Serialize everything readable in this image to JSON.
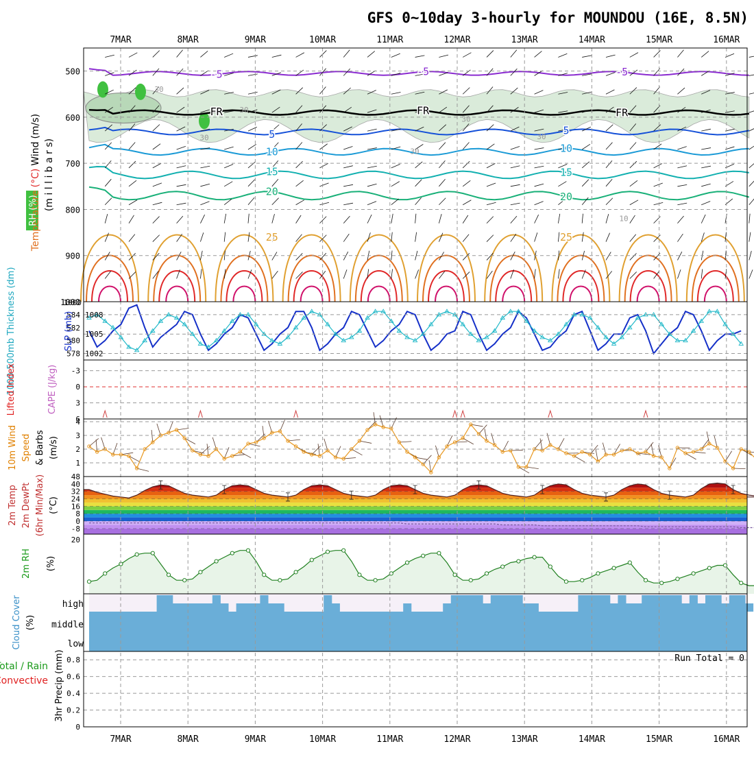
{
  "title": "GFS 0~10day 3-hourly for MOUNDOU (16E, 8.5N)",
  "dates": [
    "7MAR",
    "8MAR",
    "9MAR",
    "10MAR",
    "11MAR",
    "12MAR",
    "13MAR",
    "14MAR",
    "15MAR",
    "16MAR"
  ],
  "colors": {
    "purple": "#8a2bd0",
    "black": "#000000",
    "blue": "#1450d8",
    "lightblue": "#1a9ad6",
    "teal": "#12b0b0",
    "green": "#18b078",
    "orange": "#e0a030",
    "darkorange": "#e07020",
    "red": "#e02828",
    "magenta": "#d0106a",
    "rhfill": "#d4e8d4",
    "rhfill2": "#b8d8b8",
    "rhgreen": "#40c040",
    "slp": "#1530c8",
    "thick": "#20b8c8",
    "wind": "#e89820",
    "rhline": "#208020",
    "cloud": "#6aaed8",
    "cloudbg": "#f6f0f8",
    "lifted": "#e02020",
    "cape": "#c060c0",
    "precip_total": "#20a020"
  },
  "chart_data": [
    {
      "type": "contour",
      "panel": "upper-air",
      "ylabel_parts": [
        "Wind",
        "(m/s)",
        "Temperature",
        "(°C)",
        "RH",
        "(%)"
      ],
      "yunit_label": "(m i l l i b a r s)",
      "y_ticks": [
        500,
        600,
        700,
        800,
        900,
        1000
      ],
      "ylim": [
        1000,
        450
      ],
      "isotherms": [
        {
          "label": "-5",
          "pressure": 505,
          "color_key": "purple",
          "labels": [
            "-5",
            "-5",
            "-5"
          ]
        },
        {
          "label": "FR",
          "pressure": 590,
          "color_key": "black",
          "labels": [
            "FR",
            "FR",
            "FR"
          ]
        },
        {
          "label": "5",
          "pressure": 632,
          "color_key": "blue",
          "labels": [
            "5",
            "5"
          ]
        },
        {
          "label": "10",
          "pressure": 675,
          "color_key": "lightblue",
          "labels": [
            "10",
            "10"
          ]
        },
        {
          "label": "15",
          "pressure": 725,
          "color_key": "teal",
          "labels": [
            "15",
            "15"
          ]
        },
        {
          "label": "20",
          "pressure": 770,
          "color_key": "green",
          "labels": [
            "20",
            "20"
          ]
        },
        {
          "label": "25",
          "pressure": 860,
          "color_key": "orange",
          "labels": [
            "25",
            "25"
          ]
        }
      ],
      "rh_labels": [
        "30",
        "30",
        "30",
        "30",
        "30",
        "30",
        "10"
      ]
    },
    {
      "type": "line",
      "panel": "thickness-slp",
      "ylabel_left": "1000-500mb Thickness (dm)",
      "ylabel_right": "SLP (mb)",
      "y_ticks_left": [
        578,
        580,
        582,
        584
      ],
      "y_ticks_right": [
        1002,
        1005,
        1008
      ],
      "ylim_left": [
        577,
        586
      ],
      "ylim_right": [
        1001,
        1010
      ],
      "top_tick": "1000",
      "series": [
        {
          "name": "SLP (mb)",
          "color_key": "slp",
          "values": [
            1005.5,
            1003.0,
            1004.0,
            1005.5,
            1006.5,
            1009.0,
            1009.5,
            1006.0,
            1003.0,
            1004.5,
            1005.5,
            1006.5,
            1008.5,
            1008.0,
            1005.0,
            1002.5,
            1003.5,
            1005.0,
            1006.0,
            1008.0,
            1007.5,
            1005.0,
            1002.5,
            1003.5,
            1005.0,
            1006.0,
            1008.5,
            1008.5,
            1006.0,
            1002.5,
            1003.5,
            1005.0,
            1006.0,
            1008.5,
            1008.0,
            1005.5,
            1003.0,
            1004.0,
            1005.5,
            1006.5,
            1008.5,
            1008.0,
            1005.0,
            1002.5,
            1003.5,
            1005.0,
            1005.5,
            1008.5,
            1008.0,
            1005.0,
            1002.5,
            1003.5,
            1005.0,
            1006.0,
            1008.5,
            1007.5,
            1005.0,
            1002.5,
            1003.0,
            1004.5,
            1005.5,
            1008.0,
            1008.5,
            1005.5,
            1002.5,
            1003.5,
            1005.0,
            1005.0,
            1007.5,
            1008.0,
            1005.5,
            1002.0,
            1003.5,
            1005.0,
            1006.0,
            1008.5,
            1008.0,
            1005.5,
            1002.5,
            1004.0,
            1005.0,
            1005.0,
            1005.5
          ]
        },
        {
          "name": "Thickness (dm)",
          "color_key": "thick",
          "values": [
            583.5,
            584.0,
            583.0,
            582.0,
            580.5,
            579.0,
            578.5,
            580.0,
            581.5,
            583.0,
            584.0,
            583.5,
            582.5,
            581.0,
            579.5,
            579.0,
            580.0,
            581.5,
            583.0,
            584.0,
            584.0,
            582.5,
            581.0,
            580.0,
            579.5,
            580.5,
            582.0,
            583.5,
            584.5,
            584.0,
            582.5,
            581.0,
            580.0,
            580.5,
            581.5,
            583.5,
            584.5,
            584.5,
            583.0,
            581.5,
            580.5,
            580.0,
            581.0,
            582.5,
            584.0,
            584.5,
            584.0,
            582.5,
            581.0,
            580.0,
            580.5,
            581.5,
            583.5,
            584.5,
            584.5,
            583.0,
            581.5,
            580.5,
            580.0,
            581.0,
            582.5,
            584.0,
            584.0,
            583.5,
            582.0,
            580.5,
            579.5,
            580.5,
            582.0,
            583.5,
            584.0,
            584.0,
            582.5,
            581.0,
            580.0,
            580.0,
            581.5,
            583.0,
            584.5,
            584.5,
            582.5,
            581.0,
            579.5
          ]
        }
      ]
    },
    {
      "type": "line",
      "panel": "lifted-cape",
      "ylabel_left": "Lifted Index",
      "ylabel_right": "CAPE (J/kg)",
      "y_ticks": [
        -3,
        0,
        3,
        6
      ],
      "ylim": [
        6,
        -5
      ],
      "cape_bumps_at_index": [
        2,
        14,
        26,
        46,
        47,
        58,
        70
      ]
    },
    {
      "type": "line",
      "panel": "wind10m",
      "ylabel": [
        "10m Wind",
        "Speed",
        "& Barbs",
        "(m/s)"
      ],
      "y_ticks": [
        1,
        2,
        3,
        4
      ],
      "ylim": [
        0,
        4.2
      ],
      "series": [
        {
          "name": "Speed",
          "color_key": "wind",
          "values": [
            2.2,
            1.8,
            2.0,
            1.6,
            1.6,
            1.5,
            0.6,
            2.0,
            2.5,
            3.0,
            3.2,
            3.4,
            2.8,
            1.9,
            1.6,
            1.5,
            2.0,
            1.3,
            1.5,
            1.8,
            2.4,
            2.5,
            2.8,
            3.2,
            3.3,
            2.6,
            2.2,
            1.8,
            1.6,
            1.5,
            1.9,
            1.4,
            1.3,
            2.0,
            2.6,
            3.4,
            3.8,
            3.6,
            3.5,
            2.5,
            1.8,
            1.4,
            0.9,
            0.3,
            1.4,
            2.2,
            2.5,
            2.8,
            3.8,
            3.1,
            2.6,
            2.3,
            1.8,
            1.9,
            0.7,
            0.7,
            2.0,
            1.9,
            2.3,
            2.0,
            1.7,
            1.5,
            1.8,
            1.6,
            1.1,
            1.6,
            1.6,
            1.9,
            2.0,
            1.7,
            1.8,
            1.5,
            1.4,
            0.6,
            2.1,
            1.7,
            1.8,
            2.0,
            2.4,
            2.1,
            1.1,
            0.6,
            2.0,
            1.8,
            1.2,
            1.6
          ]
        }
      ]
    },
    {
      "type": "area",
      "panel": "temperature",
      "ylabel": [
        "2m Temp",
        "2m DewPt",
        "(6hr Min/Max)",
        "(°C)"
      ],
      "y_ticks": [
        -8,
        0,
        8,
        16,
        24,
        32,
        40,
        48
      ],
      "ylim": [
        -14,
        48
      ],
      "series": [
        {
          "name": "2m Temp",
          "values": [
            34,
            31,
            29,
            27,
            26,
            25,
            28,
            33,
            37,
            39,
            38,
            34,
            30,
            28,
            27,
            26,
            28,
            34,
            38,
            39,
            38,
            34,
            30,
            28,
            27,
            26,
            28,
            34,
            38,
            39,
            38,
            34,
            30,
            28,
            27,
            26,
            28,
            34,
            38,
            39,
            38,
            34,
            30,
            28,
            27,
            26,
            28,
            34,
            38,
            39,
            38,
            34,
            30,
            28,
            27,
            26,
            28,
            34,
            38,
            40,
            39,
            34,
            30,
            28,
            27,
            26,
            28,
            34,
            38,
            40,
            39,
            34,
            30,
            28,
            27,
            26,
            28,
            35,
            40,
            41,
            40,
            34,
            30,
            28,
            27,
            26
          ]
        },
        {
          "name": "2m DewPt",
          "values": [
            -2,
            -2,
            -2,
            -2,
            -2,
            -2,
            -2,
            -2,
            -2,
            -2,
            -2,
            -2,
            -2,
            -2,
            -2,
            -2,
            -2,
            -2,
            -2,
            -2,
            -2,
            -2,
            -2,
            -2,
            -2,
            -2,
            -2,
            -2,
            -2,
            -2,
            -2,
            -2,
            -2,
            -2,
            -2,
            -2,
            -2,
            -2,
            -2,
            -2,
            -3,
            -3,
            -3,
            -3,
            -3,
            -3,
            -3,
            -3,
            -3,
            -3,
            -3,
            -3,
            -4,
            -4,
            -4,
            -4,
            -4,
            -5,
            -5,
            -5,
            -5,
            -5,
            -5,
            -5,
            -5,
            -5,
            -5,
            -5,
            -5,
            -5,
            -6,
            -6,
            -6,
            -6,
            -6,
            -6,
            -6,
            -6,
            -6,
            -6,
            -6,
            -6,
            -7,
            -7,
            -7,
            -7
          ]
        }
      ]
    },
    {
      "type": "line",
      "panel": "rh2m",
      "ylabel": [
        "2m RH",
        "(%)"
      ],
      "y_ticks": [
        20
      ],
      "ylim": [
        0,
        22
      ],
      "series": [
        {
          "name": "2m RH",
          "color_key": "rhline",
          "values": [
            4.5,
            5,
            7.5,
            9.5,
            11,
            13,
            14.5,
            15,
            15,
            11,
            7,
            5,
            5,
            5.5,
            8,
            10,
            12,
            13.5,
            15,
            16,
            16,
            12,
            7,
            5,
            5,
            5.5,
            8,
            10,
            12.5,
            14,
            15.5,
            16,
            16,
            12,
            7,
            5,
            5,
            5.5,
            7.5,
            9.5,
            11.5,
            13,
            14,
            15,
            15,
            11.5,
            7,
            5,
            5,
            5.5,
            7.5,
            9,
            10,
            11.5,
            12,
            13,
            13.5,
            13.5,
            10,
            6.5,
            4.5,
            4.5,
            5,
            6,
            7.5,
            8.5,
            9.5,
            10.5,
            11.5,
            8,
            5,
            4,
            4,
            4.5,
            5.5,
            6.5,
            7.5,
            8.5,
            9.5,
            10.5,
            10.5,
            7,
            4,
            3,
            3,
            3.5,
            4.5,
            5,
            5.5,
            6,
            6.5
          ]
        }
      ]
    },
    {
      "type": "bar",
      "panel": "cloud",
      "ylabel": [
        "Cloud Cover",
        "(%)"
      ],
      "y_ticks_labels": [
        "high",
        "middle",
        "low"
      ]
    },
    {
      "type": "bar",
      "panel": "precip",
      "ylabel_left": [
        "Total / Rain",
        "Convective"
      ],
      "ylabel_right": "3hr Precip (mm)",
      "y_ticks": [
        0,
        0.2,
        0.4,
        0.6,
        0.8
      ],
      "ylim": [
        0,
        0.9
      ],
      "run_total_label": "Run Total = 0",
      "values": []
    }
  ]
}
